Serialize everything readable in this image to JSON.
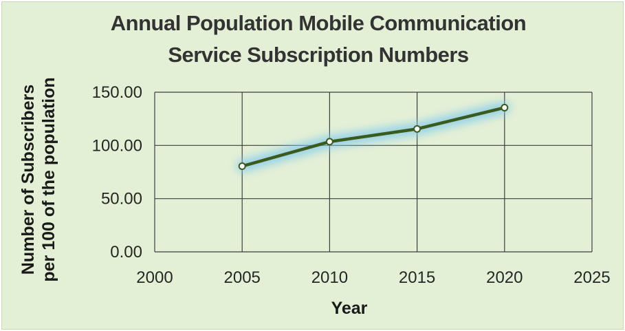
{
  "chart_data": {
    "type": "scatter",
    "title_lines": [
      "Annual Population Mobile Communication",
      "Service Subscription Numbers"
    ],
    "xlabel": "Year",
    "ylabel_lines": [
      "Number of Subscribers",
      "per 100 of the population"
    ],
    "x": [
      2005,
      2010,
      2015,
      2020
    ],
    "series": [
      {
        "values": [
          80.5,
          103.5,
          115.5,
          135.5
        ]
      }
    ],
    "xlim": [
      2000,
      2025
    ],
    "ylim": [
      0,
      150
    ],
    "xticks": [
      2000,
      2005,
      2010,
      2015,
      2020,
      2025
    ],
    "yticks": [
      0,
      50,
      100,
      150
    ],
    "ytick_labels": [
      "0.00",
      "50.00",
      "100.00",
      "150.00"
    ],
    "grid": true,
    "colors": {
      "background": "#e4f0d6",
      "line": "#3b5a1d",
      "glow": "#7ec8ec",
      "marker_fill": "#ffffff",
      "grid": "#3c3c3c"
    }
  }
}
